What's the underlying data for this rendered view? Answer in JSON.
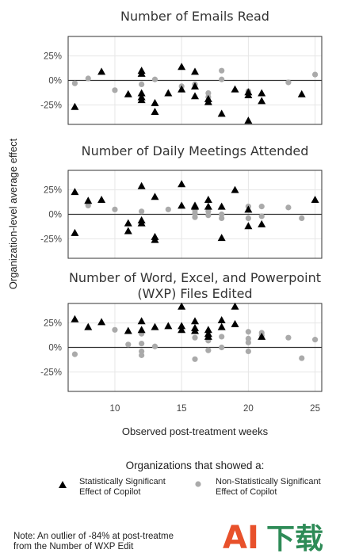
{
  "chart_data": {
    "type": "scatter",
    "xlabel": "Observed post-treatment weeks",
    "ylabel": "Organization-level average effect",
    "xlim": [
      6.5,
      25.5
    ],
    "xticks": [
      10,
      15,
      20,
      25
    ],
    "ylim": [
      -0.45,
      0.45
    ],
    "yticks": [
      {
        "value": 0.25,
        "label": "25%"
      },
      {
        "value": 0,
        "label": "0%"
      },
      {
        "value": -0.25,
        "label": "-25%"
      }
    ],
    "grid": true,
    "colors": {
      "significant": "#000000",
      "non_significant": "#aaaaaa",
      "zero_line": "#333333"
    },
    "panels": [
      {
        "title": [
          "Number of Emails Read"
        ],
        "significant": [
          [
            7,
            -0.27
          ],
          [
            9,
            0.09
          ],
          [
            11,
            -0.14
          ],
          [
            12,
            0.1
          ],
          [
            12,
            0.07
          ],
          [
            12,
            -0.13
          ],
          [
            12,
            -0.17
          ],
          [
            12,
            -0.2
          ],
          [
            13,
            -0.23
          ],
          [
            13,
            -0.32
          ],
          [
            14,
            -0.13
          ],
          [
            15,
            0.14
          ],
          [
            15,
            -0.09
          ],
          [
            16,
            0.09
          ],
          [
            16,
            -0.06
          ],
          [
            16,
            -0.16
          ],
          [
            17,
            -0.19
          ],
          [
            17,
            -0.22
          ],
          [
            18,
            -0.34
          ],
          [
            19,
            -0.09
          ],
          [
            20,
            -0.12
          ],
          [
            20,
            -0.15
          ],
          [
            20,
            -0.41
          ],
          [
            21,
            -0.13
          ],
          [
            21,
            -0.21
          ],
          [
            24,
            -0.14
          ]
        ],
        "non_significant": [
          [
            7,
            -0.03
          ],
          [
            8,
            0.02
          ],
          [
            10,
            -0.1
          ],
          [
            12,
            -0.04
          ],
          [
            13,
            0.01
          ],
          [
            15,
            -0.06
          ],
          [
            16,
            -0.04
          ],
          [
            17,
            -0.13
          ],
          [
            17,
            -0.17
          ],
          [
            18,
            0.1
          ],
          [
            18,
            0.01
          ],
          [
            20,
            -0.11
          ],
          [
            23,
            -0.02
          ],
          [
            25,
            0.06
          ]
        ]
      },
      {
        "title": [
          "Number of Daily Meetings Attended"
        ],
        "significant": [
          [
            7,
            0.23
          ],
          [
            7,
            -0.19
          ],
          [
            8,
            0.14
          ],
          [
            9,
            0.15
          ],
          [
            11,
            -0.09
          ],
          [
            11,
            -0.17
          ],
          [
            12,
            0.29
          ],
          [
            12,
            -0.06
          ],
          [
            12,
            -0.09
          ],
          [
            13,
            0.18
          ],
          [
            13,
            -0.23
          ],
          [
            13,
            -0.26
          ],
          [
            15,
            0.31
          ],
          [
            15,
            0.09
          ],
          [
            16,
            0.09
          ],
          [
            16,
            0.08
          ],
          [
            17,
            0.15
          ],
          [
            17,
            0.08
          ],
          [
            18,
            0.08
          ],
          [
            18,
            -0.24
          ],
          [
            19,
            0.25
          ],
          [
            20,
            0.05
          ],
          [
            20,
            -0.12
          ],
          [
            21,
            -0.1
          ],
          [
            25,
            0.15
          ]
        ],
        "non_significant": [
          [
            8,
            0.09
          ],
          [
            10,
            0.05
          ],
          [
            12,
            0.03
          ],
          [
            14,
            0.05
          ],
          [
            16,
            0.04
          ],
          [
            16,
            0.01
          ],
          [
            16,
            -0.03
          ],
          [
            17,
            0.03
          ],
          [
            17,
            -0.01
          ],
          [
            18,
            0.0
          ],
          [
            18,
            -0.04
          ],
          [
            20,
            0.08
          ],
          [
            20,
            -0.04
          ],
          [
            21,
            0.08
          ],
          [
            21,
            -0.02
          ],
          [
            23,
            0.07
          ],
          [
            24,
            -0.04
          ]
        ]
      },
      {
        "title": [
          "Number of Word, Excel, and Powerpoint",
          "(WXP) Files Edited"
        ],
        "significant": [
          [
            7,
            0.29
          ],
          [
            8,
            0.21
          ],
          [
            9,
            0.26
          ],
          [
            11,
            0.17
          ],
          [
            12,
            0.27
          ],
          [
            12,
            0.18
          ],
          [
            13,
            0.21
          ],
          [
            14,
            0.22
          ],
          [
            15,
            0.42
          ],
          [
            15,
            0.22
          ],
          [
            15,
            0.18
          ],
          [
            16,
            0.27
          ],
          [
            16,
            0.2
          ],
          [
            16,
            0.17
          ],
          [
            17,
            0.18
          ],
          [
            17,
            0.14
          ],
          [
            17,
            0.11
          ],
          [
            18,
            0.28
          ],
          [
            18,
            0.21
          ],
          [
            19,
            0.42
          ],
          [
            19,
            0.24
          ],
          [
            21,
            0.11
          ]
        ],
        "non_significant": [
          [
            7,
            -0.07
          ],
          [
            10,
            0.18
          ],
          [
            11,
            0.03
          ],
          [
            12,
            0.14
          ],
          [
            12,
            0.04
          ],
          [
            12,
            -0.04
          ],
          [
            12,
            -0.08
          ],
          [
            13,
            0.01
          ],
          [
            16,
            0.1
          ],
          [
            16,
            -0.12
          ],
          [
            17,
            0.07
          ],
          [
            17,
            -0.03
          ],
          [
            18,
            0.11
          ],
          [
            18,
            0.0
          ],
          [
            20,
            0.16
          ],
          [
            20,
            0.09
          ],
          [
            20,
            0.05
          ],
          [
            20,
            -0.04
          ],
          [
            21,
            0.15
          ],
          [
            21,
            0.12
          ],
          [
            23,
            0.1
          ],
          [
            24,
            -0.11
          ],
          [
            25,
            0.08
          ]
        ]
      }
    ],
    "legend": {
      "placement": "bottom",
      "title": "Organizations that showed a:",
      "significant": [
        "Statistically Significant",
        "Effect of Copilot"
      ],
      "non_significant": [
        "Non-Statistically Significant",
        "Effect of Copilot"
      ]
    }
  },
  "note": [
    "Note: An outlier of -84% at post-treatme",
    "from the Number of WXP Edit"
  ],
  "watermark": {
    "latin": "AI",
    "cjk": "下载",
    "colors": [
      "#e8512b",
      "#2e8b57"
    ]
  }
}
